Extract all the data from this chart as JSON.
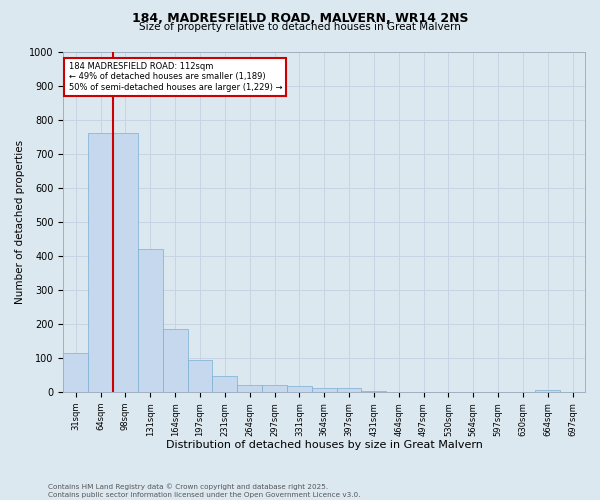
{
  "title_line1": "184, MADRESFIELD ROAD, MALVERN, WR14 2NS",
  "title_line2": "Size of property relative to detached houses in Great Malvern",
  "xlabel": "Distribution of detached houses by size in Great Malvern",
  "ylabel": "Number of detached properties",
  "bar_color": "#c5d8ee",
  "bar_edge_color": "#7bafd4",
  "categories": [
    "31sqm",
    "64sqm",
    "98sqm",
    "131sqm",
    "164sqm",
    "197sqm",
    "231sqm",
    "264sqm",
    "297sqm",
    "331sqm",
    "364sqm",
    "397sqm",
    "431sqm",
    "464sqm",
    "497sqm",
    "530sqm",
    "564sqm",
    "597sqm",
    "630sqm",
    "664sqm",
    "697sqm"
  ],
  "values": [
    115,
    760,
    760,
    420,
    185,
    95,
    48,
    22,
    22,
    18,
    12,
    12,
    5,
    0,
    0,
    0,
    0,
    0,
    0,
    8,
    0
  ],
  "ylim": [
    0,
    1000
  ],
  "yticks": [
    0,
    100,
    200,
    300,
    400,
    500,
    600,
    700,
    800,
    900,
    1000
  ],
  "property_line_bar_index": 2,
  "annotation_line1": "184 MADRESFIELD ROAD: 112sqm",
  "annotation_line2": "← 49% of detached houses are smaller (1,189)",
  "annotation_line3": "50% of semi-detached houses are larger (1,229) →",
  "annotation_box_color": "#ffffff",
  "annotation_box_edge": "#cc0000",
  "property_line_color": "#cc0000",
  "grid_color": "#c8d4e4",
  "background_color": "#dce8f0",
  "footer_line1": "Contains HM Land Registry data © Crown copyright and database right 2025.",
  "footer_line2": "Contains public sector information licensed under the Open Government Licence v3.0."
}
